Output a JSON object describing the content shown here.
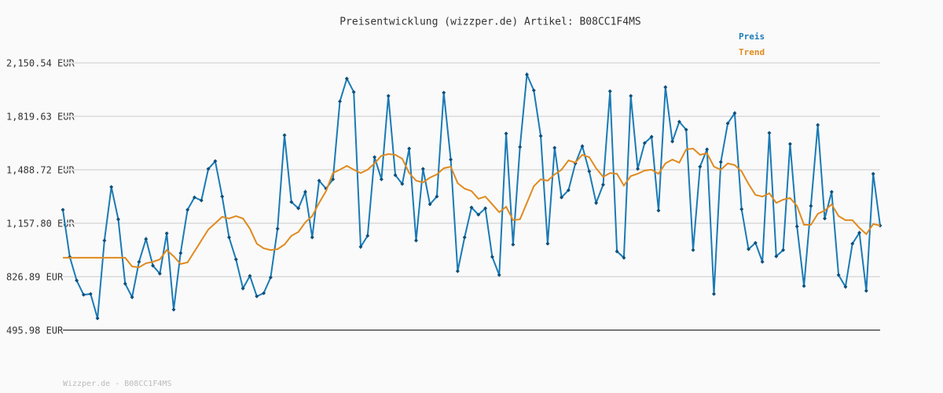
{
  "chart_data": {
    "type": "line",
    "title": "Preisentwicklung (wizzper.de) Artikel: B08CC1F4MS",
    "footer": "Wizzper.de - B08CC1F4MS",
    "ylim": [
      495.98,
      2150.54
    ],
    "yticks": [
      {
        "value": 495.98,
        "label": "495.98 EUR"
      },
      {
        "value": 826.89,
        "label": "826.89 EUR"
      },
      {
        "value": 1157.8,
        "label": "1,157.80 EUR"
      },
      {
        "value": 1488.72,
        "label": "1,488.72 EUR"
      },
      {
        "value": 1819.63,
        "label": "1,819.63 EUR"
      },
      {
        "value": 2150.54,
        "label": "2,150.54 EUR"
      }
    ],
    "grid": true,
    "legend": "top-right",
    "series": [
      {
        "name": "Preis",
        "color": "#1a7ab5",
        "markers": true,
        "values": [
          1241,
          949,
          803,
          715,
          720,
          569,
          1051,
          1382,
          1182,
          783,
          700,
          919,
          1060,
          895,
          846,
          1095,
          623,
          973,
          1241,
          1318,
          1299,
          1494,
          1542,
          1323,
          1070,
          934,
          754,
          832,
          705,
          725,
          822,
          1124,
          1703,
          1289,
          1250,
          1352,
          1070,
          1421,
          1372,
          1430,
          1912,
          2053,
          1970,
          1012,
          1080,
          1567,
          1430,
          1946,
          1455,
          1401,
          1620,
          1051,
          1494,
          1275,
          1323,
          1966,
          1552,
          861,
          1070,
          1255,
          1211,
          1250,
          949,
          837,
          1713,
          1026,
          1630,
          2078,
          1980,
          1698,
          1031,
          1625,
          1318,
          1362,
          1528,
          1635,
          1479,
          1284,
          1396,
          1975,
          983,
          944,
          1946,
          1494,
          1654,
          1693,
          1236,
          2000,
          1664,
          1786,
          1737,
          992,
          1508,
          1615,
          720,
          1537,
          1776,
          1839,
          1245,
          997,
          1036,
          919,
          1717,
          953,
          992,
          1649,
          1138,
          769,
          1265,
          1766,
          1187,
          1352,
          837,
          764,
          1031,
          1099,
          739,
          1464,
          1143
        ]
      },
      {
        "name": "Trend",
        "color": "#e08a1e",
        "markers": false,
        "values": [
          944,
          944,
          944,
          944,
          944,
          944,
          944,
          944,
          944,
          944,
          890,
          885,
          910,
          919,
          934,
          992,
          953,
          905,
          915,
          983,
          1051,
          1119,
          1158,
          1197,
          1187,
          1202,
          1187,
          1124,
          1031,
          1002,
          992,
          997,
          1026,
          1080,
          1104,
          1163,
          1202,
          1284,
          1357,
          1469,
          1489,
          1513,
          1489,
          1469,
          1489,
          1528,
          1576,
          1586,
          1581,
          1557,
          1469,
          1421,
          1411,
          1440,
          1460,
          1498,
          1508,
          1406,
          1372,
          1357,
          1309,
          1323,
          1275,
          1226,
          1260,
          1177,
          1182,
          1284,
          1387,
          1430,
          1421,
          1460,
          1489,
          1547,
          1533,
          1581,
          1567,
          1498,
          1445,
          1469,
          1464,
          1391,
          1450,
          1464,
          1484,
          1489,
          1464,
          1528,
          1552,
          1533,
          1615,
          1620,
          1581,
          1591,
          1508,
          1489,
          1528,
          1518,
          1479,
          1401,
          1333,
          1323,
          1343,
          1284,
          1304,
          1314,
          1265,
          1148,
          1148,
          1216,
          1236,
          1275,
          1202,
          1177,
          1177,
          1129,
          1090,
          1153,
          1143
        ]
      }
    ]
  }
}
